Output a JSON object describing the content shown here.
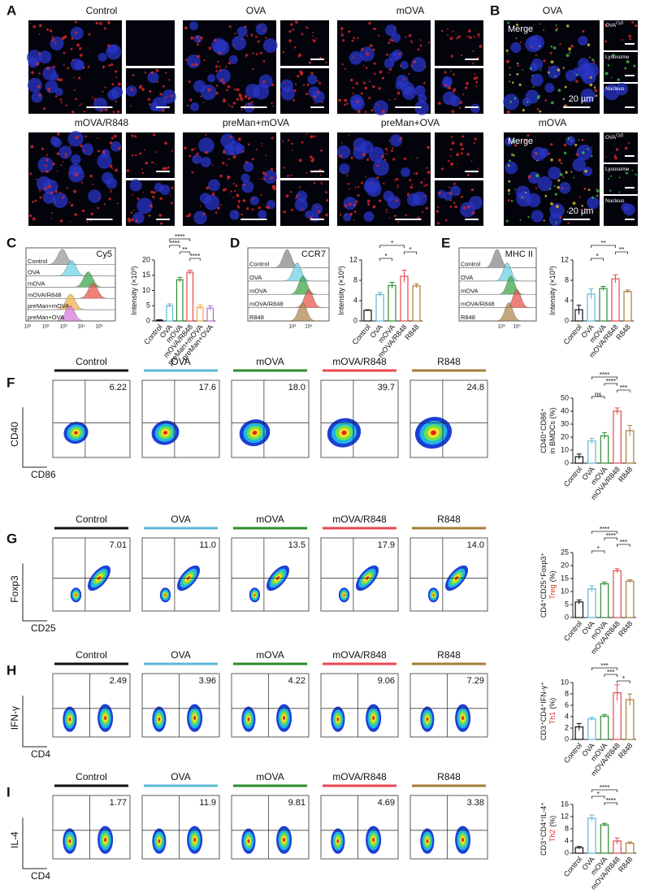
{
  "panel_labels": [
    "A",
    "B",
    "C",
    "D",
    "E",
    "F",
    "G",
    "H",
    "I"
  ],
  "microscopy": {
    "groups": [
      "Control",
      "OVA",
      "mOVA",
      "mOVA/R848",
      "preMan+mOVA",
      "preMan+OVA"
    ]
  },
  "panel_b": {
    "groups": [
      "OVA",
      "mOVA"
    ],
    "merge": "Merge",
    "scale": "20 µm",
    "channels": [
      "OVA",
      "Lysosome",
      "Nucleus"
    ],
    "channel_sup": "Cy5"
  },
  "histograms": [
    {
      "marker": "Cy5",
      "labels": [
        "Control",
        "OVA",
        "mOVA",
        "mOVA/R848",
        "preMan+mOVA",
        "preMan+OVA"
      ],
      "colors": [
        "#9a9a9a",
        "#6fd3e6",
        "#3ea84a",
        "#e8574e",
        "#f2b24a",
        "#d77ad8"
      ],
      "xticks": [
        "10¹",
        "10²",
        "10³",
        "10⁴",
        "10⁵"
      ]
    },
    {
      "marker": "CCR7",
      "labels": [
        "Control",
        "OVA",
        "mOVA",
        "mOVA/R848",
        "R848"
      ],
      "colors": [
        "#8a8a8a",
        "#6fd3e6",
        "#3ea84a",
        "#e8574e",
        "#b08a50"
      ],
      "xticks": [
        "10³",
        "10⁴"
      ]
    },
    {
      "marker": "MHC II",
      "labels": [
        "Control",
        "OVA",
        "mOVA",
        "mOVA/R848",
        "R848"
      ],
      "colors": [
        "#8a8a8a",
        "#6fd3e6",
        "#3ea84a",
        "#e8574e",
        "#b08a50"
      ],
      "xticks": [
        "10³",
        "10⁴"
      ]
    }
  ],
  "flow": [
    {
      "x_label": "CD86",
      "y_label": "CD40",
      "groups": [
        "Control",
        "OVA",
        "mOVA",
        "mOVA/R848",
        "R848"
      ],
      "quadrant_values": [
        "6.22",
        "17.6",
        "18.0",
        "39.7",
        "24.8"
      ]
    },
    {
      "x_label": "CD25",
      "y_label": "Foxp3",
      "groups": [
        "Control",
        "OVA",
        "mOVA",
        "mOVA/R848",
        "R848"
      ],
      "quadrant_values": [
        "7.01",
        "11.0",
        "13.5",
        "17.9",
        "14.0"
      ]
    },
    {
      "x_label": "CD4",
      "y_label": "IFN-γ",
      "groups": [
        "Control",
        "OVA",
        "mOVA",
        "mOVA/R848",
        "R848"
      ],
      "quadrant_values": [
        "2.49",
        "3.96",
        "4.22",
        "9.06",
        "7.29"
      ]
    },
    {
      "x_label": "CD4",
      "y_label": "IL-4",
      "groups": [
        "Control",
        "OVA",
        "mOVA",
        "mOVA/R848",
        "R848"
      ],
      "quadrant_values": [
        "1.77",
        "11.9",
        "9.81",
        "4.69",
        "3.38"
      ]
    }
  ],
  "flow_colors": [
    "#111111",
    "#5bb8d4",
    "#2e8b2e",
    "#e8474e",
    "#a67c3a"
  ],
  "chart_data": [
    {
      "type": "bar",
      "ylabel": [
        [
          {
            "text": "Intensity (×10³)"
          }
        ]
      ],
      "categories": [
        "Control",
        "OVA",
        "mOVA",
        "mOVA/R848",
        "preMan+mOVA",
        "preMan+OVA"
      ],
      "values": [
        0.3,
        5,
        13.5,
        16,
        4.5,
        4.2
      ],
      "errors": [
        0.1,
        0.6,
        0.8,
        0.7,
        0.8,
        0.8
      ],
      "colors": [
        "#111111",
        "#5bb8d4",
        "#2e8b2e",
        "#e8474e",
        "#f0a040",
        "#b070d0"
      ],
      "ylim": [
        0,
        20
      ],
      "yticks": [
        0,
        5,
        10,
        15,
        20
      ],
      "significance": [
        {
          "label": "****",
          "pair": [
            "OVA",
            "mOVA/R848"
          ]
        },
        {
          "label": "****",
          "pair": [
            "OVA",
            "mOVA"
          ]
        },
        {
          "label": "**",
          "pair": [
            "mOVA",
            "mOVA/R848"
          ]
        },
        {
          "label": "****",
          "pair": [
            "mOVA/R848",
            "preMan+mOVA"
          ]
        }
      ]
    },
    {
      "type": "bar",
      "ylabel": [
        [
          {
            "text": "Intensity (×10³)"
          }
        ]
      ],
      "categories": [
        "Control",
        "OVA",
        "mOVA",
        "mOVA/R848",
        "R848"
      ],
      "values": [
        2.1,
        5.2,
        7,
        8.8,
        6.9
      ],
      "errors": [
        0.1,
        0.4,
        0.6,
        1.2,
        0.4
      ],
      "colors": [
        "#111111",
        "#5bb8d4",
        "#2e8b2e",
        "#e8474e",
        "#a67c3a"
      ],
      "ylim": [
        0,
        12
      ],
      "yticks": [
        0,
        4,
        8,
        12
      ],
      "significance": [
        {
          "label": "*",
          "pair": [
            "OVA",
            "mOVA/R848"
          ]
        },
        {
          "label": "*",
          "pair": [
            "mOVA/R848",
            "R848"
          ]
        },
        {
          "label": "*",
          "pair": [
            "OVA",
            "mOVA"
          ]
        }
      ]
    },
    {
      "type": "bar",
      "ylabel": [
        [
          {
            "text": "Intensity (×10³)"
          }
        ]
      ],
      "categories": [
        "Control",
        "OVA",
        "mOVA",
        "mOVA/R848",
        "R848"
      ],
      "values": [
        2.2,
        5.3,
        6.4,
        8.3,
        5.8
      ],
      "errors": [
        0.9,
        1,
        0.4,
        0.8,
        0.3
      ],
      "colors": [
        "#111111",
        "#5bb8d4",
        "#2e8b2e",
        "#e8474e",
        "#a67c3a"
      ],
      "ylim": [
        0,
        12
      ],
      "yticks": [
        0,
        4,
        8,
        12
      ],
      "significance": [
        {
          "label": "**",
          "pair": [
            "OVA",
            "mOVA/R848"
          ]
        },
        {
          "label": "**",
          "pair": [
            "mOVA/R848",
            "R848"
          ]
        },
        {
          "label": "*",
          "pair": [
            "OVA",
            "mOVA"
          ]
        }
      ]
    },
    {
      "type": "bar",
      "ylabel": [
        [
          {
            "text": "CD40⁺CD86⁺"
          }
        ],
        [
          {
            "text": "in BMDCs (%)"
          }
        ]
      ],
      "categories": [
        "Control",
        "OVA",
        "mOVA",
        "mOVA/R848",
        "R848"
      ],
      "values": [
        5,
        17,
        21,
        40,
        25
      ],
      "errors": [
        2,
        2,
        2.5,
        2.5,
        4
      ],
      "colors": [
        "#111111",
        "#5bb8d4",
        "#2e8b2e",
        "#e8474e",
        "#a67c3a"
      ],
      "ylim": [
        0,
        50
      ],
      "yticks": [
        0,
        10,
        20,
        30,
        40,
        50
      ],
      "significance": [
        {
          "label": "****",
          "pair": [
            "OVA",
            "mOVA/R848"
          ]
        },
        {
          "label": "****",
          "pair": [
            "mOVA",
            "mOVA/R848"
          ]
        },
        {
          "label": "***",
          "pair": [
            "mOVA/R848",
            "R848"
          ]
        },
        {
          "label": "ns",
          "pair": [
            "OVA",
            "mOVA"
          ]
        }
      ]
    },
    {
      "type": "bar",
      "ylabel": [
        [
          {
            "text": "CD4⁺CD25⁺Foxp3⁺"
          }
        ],
        [
          {
            "text": "Treg",
            "color": "#e0302a"
          },
          {
            "text": "(%)"
          }
        ]
      ],
      "categories": [
        "Control",
        "OVA",
        "mOVA",
        "mOVA/R848",
        "R848"
      ],
      "values": [
        6,
        11,
        13,
        18,
        14
      ],
      "errors": [
        0.8,
        1.2,
        0.7,
        0.8,
        0.5
      ],
      "colors": [
        "#111111",
        "#5bb8d4",
        "#2e8b2e",
        "#e8474e",
        "#a67c3a"
      ],
      "ylim": [
        0,
        25
      ],
      "yticks": [
        0,
        5,
        10,
        15,
        20,
        25
      ],
      "significance": [
        {
          "label": "****",
          "pair": [
            "OVA",
            "mOVA/R848"
          ]
        },
        {
          "label": "****",
          "pair": [
            "mOVA",
            "mOVA/R848"
          ]
        },
        {
          "label": "***",
          "pair": [
            "mOVA/R848",
            "R848"
          ]
        },
        {
          "label": "*",
          "pair": [
            "OVA",
            "mOVA"
          ]
        }
      ]
    },
    {
      "type": "bar",
      "ylabel": [
        [
          {
            "text": "CD3⁺CD4⁺IFN-γ⁺"
          }
        ],
        [
          {
            "text": "Th1",
            "color": "#e0302a"
          },
          {
            "text": "(%)"
          }
        ]
      ],
      "categories": [
        "Control",
        "OVA",
        "mOVA",
        "mOVA/R848",
        "R848"
      ],
      "values": [
        2.2,
        3.6,
        4.1,
        8.2,
        7
      ],
      "errors": [
        0.6,
        0.3,
        0.3,
        1.4,
        1
      ],
      "colors": [
        "#111111",
        "#5bb8d4",
        "#2e8b2e",
        "#e8474e",
        "#a67c3a"
      ],
      "ylim": [
        0,
        10
      ],
      "yticks": [
        0,
        2,
        4,
        6,
        8,
        10
      ],
      "significance": [
        {
          "label": "***",
          "pair": [
            "OVA",
            "mOVA/R848"
          ]
        },
        {
          "label": "***",
          "pair": [
            "mOVA",
            "mOVA/R848"
          ]
        },
        {
          "label": "*",
          "pair": [
            "mOVA/R848",
            "R848"
          ]
        }
      ]
    },
    {
      "type": "bar",
      "ylabel": [
        [
          {
            "text": "CD3⁺CD4⁺IL-4⁺"
          }
        ],
        [
          {
            "text": "Th2",
            "color": "#e0302a"
          },
          {
            "text": "(%)"
          }
        ]
      ],
      "categories": [
        "Control",
        "OVA",
        "mOVA",
        "mOVA/R848",
        "R848"
      ],
      "values": [
        1.8,
        11.5,
        9.3,
        4,
        3.3
      ],
      "errors": [
        0.4,
        1,
        0.5,
        1,
        0.4
      ],
      "colors": [
        "#111111",
        "#5bb8d4",
        "#2e8b2e",
        "#e8474e",
        "#a67c3a"
      ],
      "ylim": [
        0,
        16
      ],
      "yticks": [
        0,
        4,
        8,
        12,
        16
      ],
      "significance": [
        {
          "label": "****",
          "pair": [
            "OVA",
            "mOVA/R848"
          ]
        },
        {
          "label": "*",
          "pair": [
            "OVA",
            "mOVA"
          ]
        },
        {
          "label": "****",
          "pair": [
            "mOVA",
            "mOVA/R848"
          ]
        }
      ]
    }
  ]
}
